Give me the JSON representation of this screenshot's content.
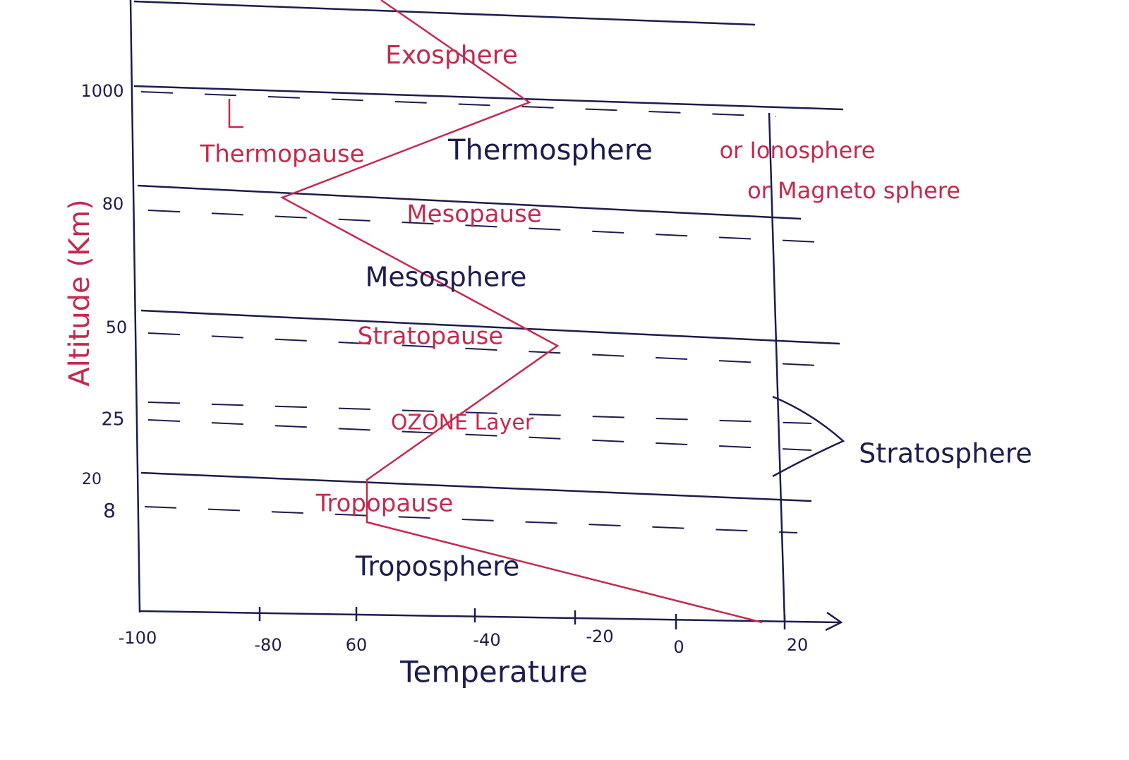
{
  "axes": {
    "y_title": "Altitude (Km)",
    "x_title": "Temperature",
    "y_labels": [
      "1000",
      "80",
      "50",
      "25",
      "20",
      "8"
    ],
    "x_labels": [
      "-100",
      "-80",
      "60",
      "-40",
      "-20",
      "0",
      "20"
    ]
  },
  "layers": {
    "exosphere": "Exosphere",
    "thermopause": "Thermopause",
    "thermosphere": "Thermosphere",
    "ionosphere": "or Ionosphere",
    "magnetosphere": "or Magneto sphere",
    "mesopause": "Mesopause",
    "mesosphere": "Mesosphere",
    "stratopause": "Stratopause",
    "ozone": "OZONE Layer",
    "tropopause": "Tropopause",
    "troposphere": "Troposphere",
    "stratosphere": "Stratosphere"
  }
}
